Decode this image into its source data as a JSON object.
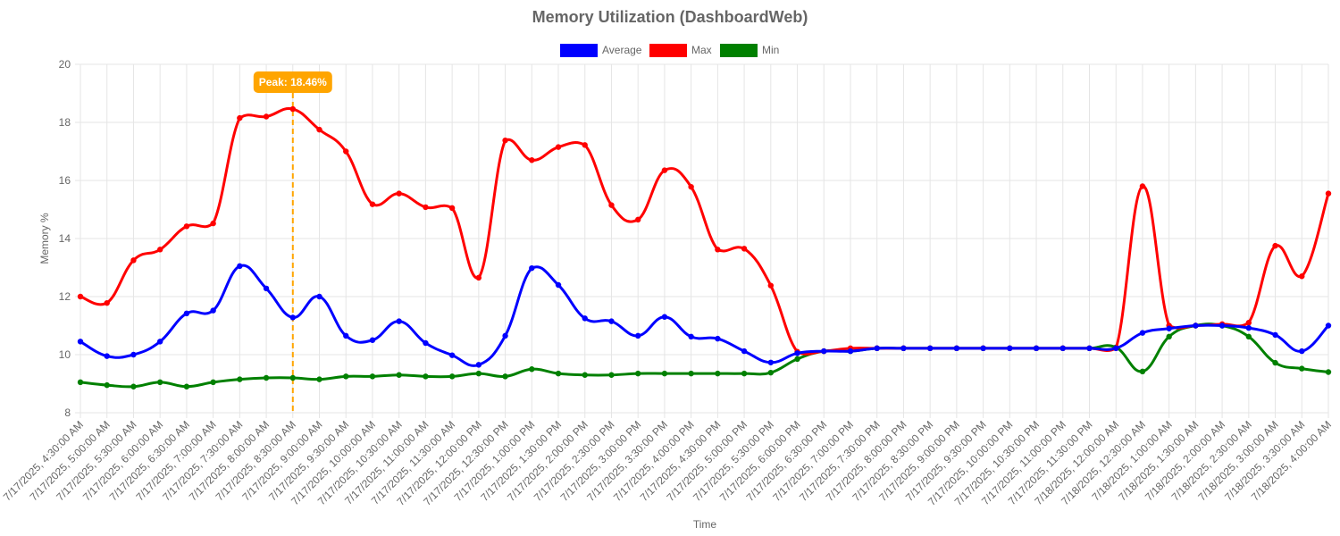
{
  "chart_data": {
    "type": "line",
    "title": "Memory Utilization (DashboardWeb)",
    "xlabel": "Time",
    "ylabel": "Memory %",
    "ylim": [
      8,
      20
    ],
    "yticks": [
      8,
      10,
      12,
      14,
      16,
      18,
      20
    ],
    "grid": true,
    "legend_position": "top-center",
    "categories": [
      "7/17/2025, 4:30:00 AM",
      "7/17/2025, 5:00:00 AM",
      "7/17/2025, 5:30:00 AM",
      "7/17/2025, 6:00:00 AM",
      "7/17/2025, 6:30:00 AM",
      "7/17/2025, 7:00:00 AM",
      "7/17/2025, 7:30:00 AM",
      "7/17/2025, 8:00:00 AM",
      "7/17/2025, 8:30:00 AM",
      "7/17/2025, 9:00:00 AM",
      "7/17/2025, 9:30:00 AM",
      "7/17/2025, 10:00:00 AM",
      "7/17/2025, 10:30:00 AM",
      "7/17/2025, 11:00:00 AM",
      "7/17/2025, 11:30:00 AM",
      "7/17/2025, 12:00:00 PM",
      "7/17/2025, 12:30:00 PM",
      "7/17/2025, 1:00:00 PM",
      "7/17/2025, 1:30:00 PM",
      "7/17/2025, 2:00:00 PM",
      "7/17/2025, 2:30:00 PM",
      "7/17/2025, 3:00:00 PM",
      "7/17/2025, 3:30:00 PM",
      "7/17/2025, 4:00:00 PM",
      "7/17/2025, 4:30:00 PM",
      "7/17/2025, 5:00:00 PM",
      "7/17/2025, 5:30:00 PM",
      "7/17/2025, 6:00:00 PM",
      "7/17/2025, 6:30:00 PM",
      "7/17/2025, 7:00:00 PM",
      "7/17/2025, 7:30:00 PM",
      "7/17/2025, 8:00:00 PM",
      "7/17/2025, 8:30:00 PM",
      "7/17/2025, 9:00:00 PM",
      "7/17/2025, 9:30:00 PM",
      "7/17/2025, 10:00:00 PM",
      "7/17/2025, 10:30:00 PM",
      "7/17/2025, 11:00:00 PM",
      "7/17/2025, 11:30:00 PM",
      "7/18/2025, 12:00:00 AM",
      "7/18/2025, 12:30:00 AM",
      "7/18/2025, 1:00:00 AM",
      "7/18/2025, 1:30:00 AM",
      "7/18/2025, 2:00:00 AM",
      "7/18/2025, 2:30:00 AM",
      "7/18/2025, 3:00:00 AM",
      "7/18/2025, 3:30:00 AM",
      "7/18/2025, 4:00:00 AM"
    ],
    "series": [
      {
        "name": "Average",
        "color": "#0000ff",
        "values": [
          10.45,
          9.95,
          10.0,
          10.45,
          11.42,
          11.52,
          13.05,
          12.28,
          11.28,
          12.0,
          10.65,
          10.5,
          11.15,
          10.4,
          9.98,
          9.65,
          10.65,
          12.98,
          12.4,
          11.25,
          11.15,
          10.65,
          11.3,
          10.62,
          10.55,
          10.12,
          9.73,
          10.05,
          10.12,
          10.12,
          10.22,
          10.22,
          10.22,
          10.22,
          10.22,
          10.22,
          10.22,
          10.22,
          10.22,
          10.22,
          10.75,
          10.9,
          11.0,
          11.0,
          10.92,
          10.68,
          10.12,
          11.0
        ]
      },
      {
        "name": "Max",
        "color": "#ff0000",
        "values": [
          12.0,
          11.78,
          13.25,
          13.62,
          14.42,
          14.52,
          18.15,
          18.2,
          18.46,
          17.75,
          17.0,
          15.18,
          15.55,
          15.08,
          15.05,
          12.65,
          17.38,
          16.7,
          17.15,
          17.22,
          15.15,
          14.65,
          16.35,
          15.78,
          13.62,
          13.65,
          12.38,
          10.1,
          10.12,
          10.22,
          10.22,
          10.22,
          10.22,
          10.22,
          10.22,
          10.22,
          10.22,
          10.22,
          10.22,
          10.22,
          15.8,
          11.0,
          11.0,
          11.05,
          11.1,
          13.75,
          12.7,
          15.55
        ]
      },
      {
        "name": "Min",
        "color": "#008000",
        "values": [
          9.05,
          8.95,
          8.9,
          9.05,
          8.9,
          9.05,
          9.15,
          9.2,
          9.2,
          9.15,
          9.25,
          9.25,
          9.3,
          9.25,
          9.25,
          9.35,
          9.25,
          9.5,
          9.35,
          9.3,
          9.3,
          9.35,
          9.35,
          9.35,
          9.35,
          9.35,
          9.38,
          9.85,
          10.12,
          10.12,
          10.22,
          10.22,
          10.22,
          10.22,
          10.22,
          10.22,
          10.22,
          10.22,
          10.22,
          10.25,
          9.42,
          10.62,
          11.0,
          11.0,
          10.62,
          9.72,
          9.52,
          9.4
        ]
      }
    ],
    "annotation": {
      "label": "Peak: 18.46%",
      "category": "7/17/2025, 8:30:00 AM",
      "color": "#ffa500"
    }
  }
}
